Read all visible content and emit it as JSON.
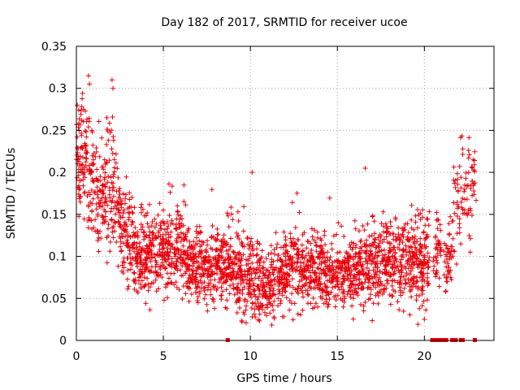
{
  "chart_data": {
    "type": "scatter",
    "title": "Day 182 of 2017, SRMTID for receiver ucoe",
    "xlabel": "GPS time / hours",
    "ylabel": "SRMTID / TECUs",
    "xlim": [
      0,
      24
    ],
    "ylim": [
      0,
      0.35
    ],
    "xticks": [
      0,
      5,
      10,
      15,
      20
    ],
    "xtick_labels": [
      "0",
      "5",
      "10",
      "15",
      "20"
    ],
    "yticks": [
      0,
      0.05,
      0.1,
      0.15,
      0.2,
      0.25,
      0.3,
      0.35
    ],
    "ytick_labels": [
      "0",
      "0.05",
      "0.1",
      "0.15",
      "0.2",
      "0.25",
      "0.3",
      "0.35"
    ],
    "grid": true,
    "marker": "plus",
    "color": "#e8000b",
    "series_name": "SRMTID",
    "trend": {
      "hours": [
        0,
        0.5,
        1,
        1.5,
        2,
        2.5,
        3,
        3.5,
        4,
        5,
        6,
        7,
        8,
        9,
        10,
        10.5,
        11,
        12,
        13,
        14,
        15,
        16,
        17,
        18,
        19,
        20,
        20.3
      ],
      "center": [
        0.21,
        0.22,
        0.18,
        0.17,
        0.19,
        0.15,
        0.12,
        0.1,
        0.1,
        0.11,
        0.11,
        0.085,
        0.09,
        0.09,
        0.08,
        0.065,
        0.06,
        0.08,
        0.085,
        0.085,
        0.075,
        0.085,
        0.09,
        0.09,
        0.095,
        0.09,
        0.09
      ],
      "spread": [
        0.035,
        0.04,
        0.045,
        0.035,
        0.045,
        0.03,
        0.03,
        0.028,
        0.03,
        0.028,
        0.028,
        0.022,
        0.025,
        0.03,
        0.03,
        0.025,
        0.022,
        0.025,
        0.025,
        0.028,
        0.02,
        0.025,
        0.028,
        0.025,
        0.028,
        0.03,
        0.03
      ]
    },
    "late_cluster": {
      "hours": [
        20.5,
        21,
        21.3,
        21.8,
        22,
        22.3,
        22.6,
        22.9
      ],
      "center": [
        0.1,
        0.12,
        0.08,
        0.14,
        0.17,
        0.18,
        0.16,
        0.19
      ],
      "spread": [
        0.02,
        0.02,
        0.025,
        0.03,
        0.03,
        0.03,
        0.03,
        0.02
      ]
    },
    "point_count": 2600,
    "outliers": [
      {
        "x": 0.7,
        "y": 0.315
      },
      {
        "x": 0.75,
        "y": 0.305
      },
      {
        "x": 2.05,
        "y": 0.31
      },
      {
        "x": 2.1,
        "y": 0.3
      },
      {
        "x": 0.05,
        "y": 0.28
      },
      {
        "x": 1.75,
        "y": 0.265
      },
      {
        "x": 16.6,
        "y": 0.205
      },
      {
        "x": 10.1,
        "y": 0.2
      },
      {
        "x": 22.2,
        "y": 0.228
      },
      {
        "x": 22.8,
        "y": 0.215
      }
    ],
    "zero_points": [
      8.7,
      20.45,
      20.55,
      20.65,
      20.75,
      20.85,
      20.95,
      21.05,
      21.15,
      21.25,
      21.6,
      21.7,
      21.8,
      22.1,
      22.2,
      22.9
    ]
  }
}
